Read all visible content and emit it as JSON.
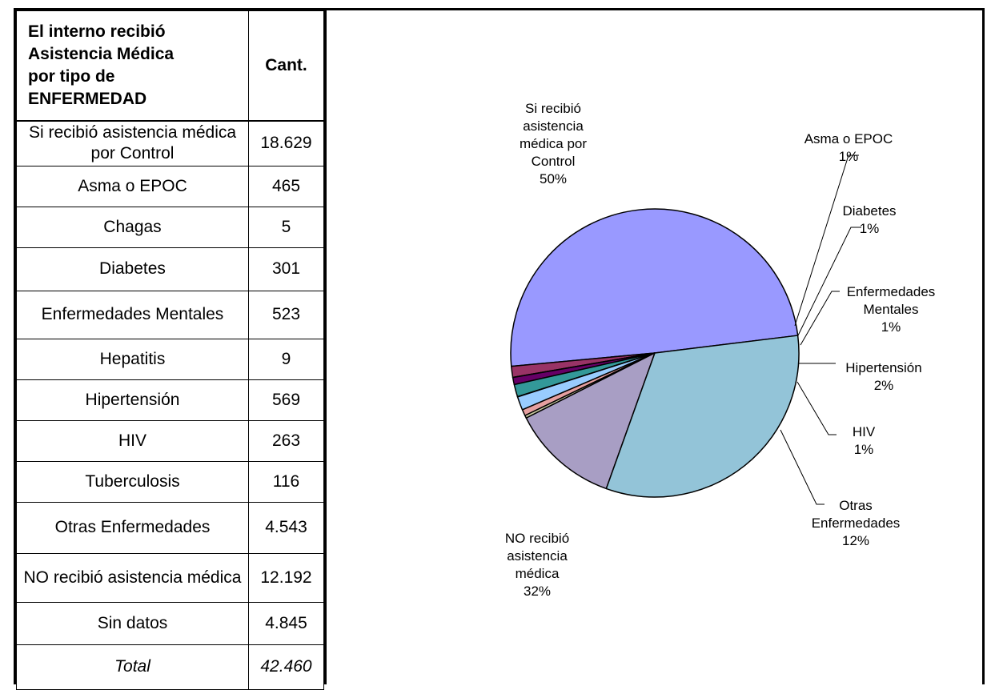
{
  "table": {
    "header": {
      "col1": [
        "El interno recibió",
        "Asistencia Médica",
        "por tipo de",
        "ENFERMEDAD"
      ],
      "col2": "Cant."
    },
    "rows": [
      {
        "label": "Si recibió asistencia médica por Control",
        "value": "18.629"
      },
      {
        "label": "Asma o EPOC",
        "value": "465"
      },
      {
        "label": "Chagas",
        "value": "5"
      },
      {
        "label": "Diabetes",
        "value": "301"
      },
      {
        "label": "Enfermedades Mentales",
        "value": "523"
      },
      {
        "label": "Hepatitis",
        "value": "9"
      },
      {
        "label": "Hipertensión",
        "value": "569"
      },
      {
        "label": "HIV",
        "value": "263"
      },
      {
        "label": "Tuberculosis",
        "value": "116"
      },
      {
        "label": "Otras Enfermedades",
        "value": "4.543"
      },
      {
        "label": "NO recibió asistencia médica",
        "value": "12.192"
      },
      {
        "label": "Sin datos",
        "value": "4.845"
      }
    ],
    "total": {
      "label": "Total",
      "value": "42.460"
    }
  },
  "chart_data": {
    "type": "pie",
    "slices": [
      {
        "name": "Si recibió asistencia médica por Control",
        "value": 18629,
        "color": "#9999ff",
        "label": [
          "Si recibió",
          "asistencia",
          "médica por",
          "Control",
          "50%"
        ]
      },
      {
        "name": "Asma o EPOC",
        "value": 465,
        "color": "#993366",
        "label": [
          "Asma o EPOC",
          "1%"
        ]
      },
      {
        "name": "Chagas",
        "value": 5,
        "color": "#ffffcc",
        "label": null
      },
      {
        "name": "Diabetes",
        "value": 301,
        "color": "#660066",
        "label": [
          "Diabetes",
          "1%"
        ]
      },
      {
        "name": "Enfermedades Mentales",
        "value": 523,
        "color": "#339999",
        "label": [
          "Enfermedades",
          "Mentales",
          "1%"
        ]
      },
      {
        "name": "Hepatitis",
        "value": 9,
        "color": "#ccffff",
        "label": null
      },
      {
        "name": "Hipertensión",
        "value": 569,
        "color": "#99ccff",
        "label": [
          "Hipertensión",
          "2%"
        ]
      },
      {
        "name": "HIV",
        "value": 263,
        "color": "#e6a0a0",
        "label": [
          "HIV",
          "1%"
        ]
      },
      {
        "name": "Tuberculosis",
        "value": 116,
        "color": "#c8c8a0",
        "label": null
      },
      {
        "name": "Otras Enfermedades",
        "value": 4543,
        "color": "#a89ec4",
        "label": [
          "Otras",
          "Enfermedades",
          "12%"
        ]
      },
      {
        "name": "NO recibió asistencia médica",
        "value": 12192,
        "color": "#93c4d8",
        "label": [
          "NO recibió",
          "asistencia",
          "médica",
          "32%"
        ]
      }
    ]
  }
}
